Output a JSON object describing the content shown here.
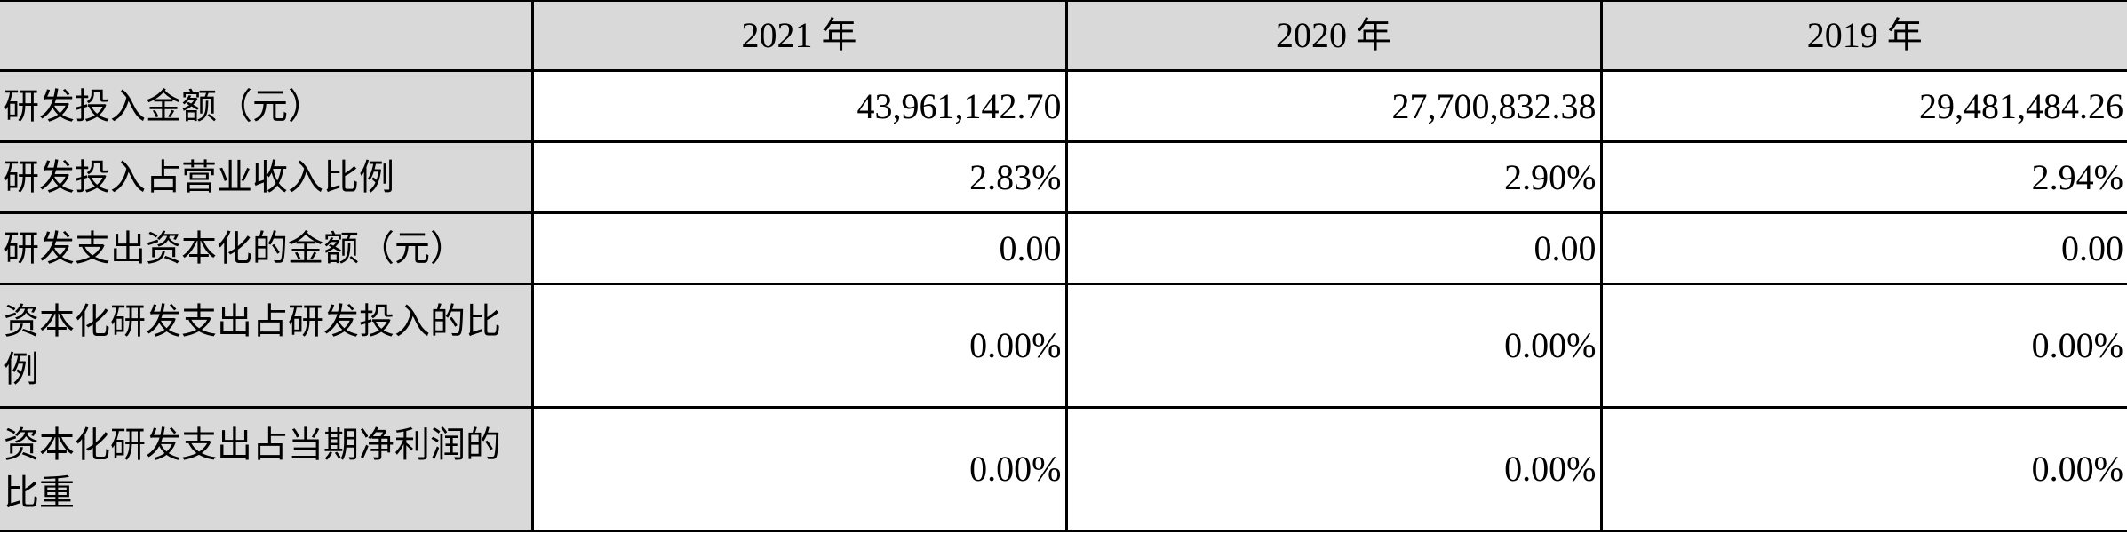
{
  "table": {
    "headers": [
      "",
      "2021 年",
      "2020 年",
      "2019 年"
    ],
    "rows": [
      {
        "label": "研发投入金额（元）",
        "values": [
          "43,961,142.70",
          "27,700,832.38",
          "29,481,484.26"
        ]
      },
      {
        "label": "研发投入占营业收入比例",
        "values": [
          "2.83%",
          "2.90%",
          "2.94%"
        ]
      },
      {
        "label": "研发支出资本化的金额（元）",
        "values": [
          "0.00",
          "0.00",
          "0.00"
        ]
      },
      {
        "label": "资本化研发支出占研发投入的比例",
        "values": [
          "0.00%",
          "0.00%",
          "0.00%"
        ]
      },
      {
        "label": "资本化研发支出占当期净利润的比重",
        "values": [
          "0.00%",
          "0.00%",
          "0.00%"
        ]
      }
    ]
  },
  "colors": {
    "header_bg": "#d9d9d9",
    "border": "#000000"
  }
}
